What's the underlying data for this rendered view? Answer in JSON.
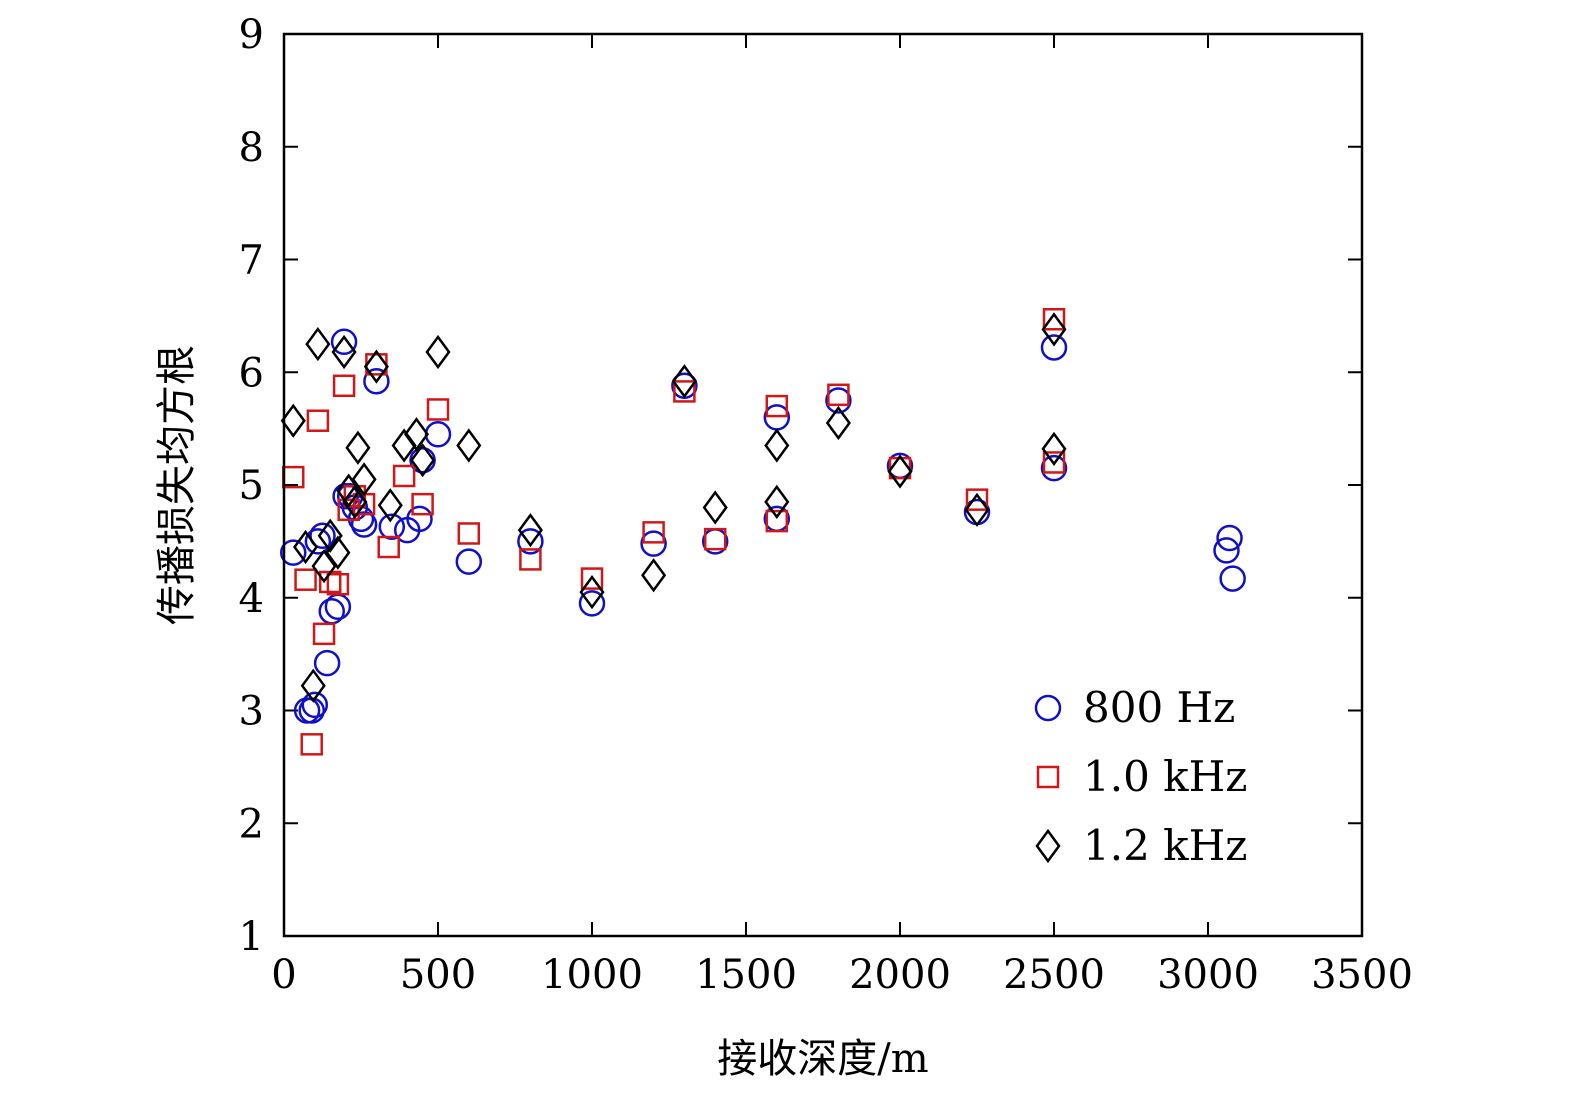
{
  "chart_data": {
    "type": "scatter",
    "title": "",
    "xlabel": "接收深度/m",
    "ylabel": "传播损失均方根",
    "xlim": [
      0,
      3500
    ],
    "ylim": [
      1,
      9
    ],
    "xticks": [
      0,
      500,
      1000,
      1500,
      2000,
      2500,
      3000,
      3500
    ],
    "yticks": [
      1,
      2,
      3,
      4,
      5,
      6,
      7,
      8,
      9
    ],
    "xtick_labels": [
      "0",
      "500",
      "1000",
      "1500",
      "2000",
      "2500",
      "3000",
      "3500"
    ],
    "ytick_labels": [
      "1",
      "2",
      "3",
      "4",
      "5",
      "6",
      "7",
      "8",
      "9"
    ],
    "grid": false,
    "legend_position": "bottom-right",
    "series": [
      {
        "name": "800 Hz",
        "marker": "circle",
        "color": "#1010c8",
        "points": [
          [
            30,
            4.4
          ],
          [
            75,
            3.0
          ],
          [
            90,
            3.0
          ],
          [
            100,
            3.05
          ],
          [
            110,
            4.5
          ],
          [
            125,
            4.55
          ],
          [
            140,
            3.42
          ],
          [
            155,
            3.88
          ],
          [
            175,
            3.92
          ],
          [
            195,
            6.27
          ],
          [
            200,
            4.9
          ],
          [
            215,
            4.9
          ],
          [
            230,
            4.8
          ],
          [
            250,
            4.7
          ],
          [
            260,
            4.65
          ],
          [
            300,
            5.92
          ],
          [
            350,
            4.63
          ],
          [
            400,
            4.6
          ],
          [
            440,
            4.7
          ],
          [
            450,
            5.22
          ],
          [
            500,
            5.45
          ],
          [
            600,
            4.32
          ],
          [
            800,
            4.5
          ],
          [
            1000,
            3.95
          ],
          [
            1200,
            4.48
          ],
          [
            1300,
            5.88
          ],
          [
            1400,
            4.5
          ],
          [
            1600,
            5.6
          ],
          [
            1600,
            4.7
          ],
          [
            1800,
            5.75
          ],
          [
            2000,
            5.17
          ],
          [
            2250,
            4.76
          ],
          [
            2500,
            6.22
          ],
          [
            2500,
            5.15
          ],
          [
            3060,
            4.42
          ],
          [
            3070,
            4.53
          ],
          [
            3080,
            4.17
          ]
        ]
      },
      {
        "name": "1.0 kHz",
        "marker": "square",
        "color": "#d01818",
        "points": [
          [
            30,
            5.07
          ],
          [
            70,
            4.16
          ],
          [
            90,
            2.7
          ],
          [
            110,
            5.57
          ],
          [
            130,
            3.68
          ],
          [
            150,
            4.14
          ],
          [
            175,
            4.12
          ],
          [
            195,
            5.88
          ],
          [
            210,
            4.78
          ],
          [
            230,
            4.9
          ],
          [
            260,
            4.83
          ],
          [
            300,
            6.07
          ],
          [
            340,
            4.45
          ],
          [
            390,
            5.08
          ],
          [
            450,
            4.83
          ],
          [
            500,
            5.67
          ],
          [
            600,
            4.57
          ],
          [
            800,
            4.34
          ],
          [
            1000,
            4.17
          ],
          [
            1200,
            4.58
          ],
          [
            1300,
            5.83
          ],
          [
            1400,
            4.52
          ],
          [
            1600,
            5.7
          ],
          [
            1600,
            4.68
          ],
          [
            1800,
            5.8
          ],
          [
            2000,
            5.15
          ],
          [
            2250,
            4.87
          ],
          [
            2500,
            6.47
          ],
          [
            2500,
            5.2
          ]
        ]
      },
      {
        "name": "1.2 kHz",
        "marker": "diamond",
        "color": "#000000",
        "points": [
          [
            30,
            5.57
          ],
          [
            70,
            4.45
          ],
          [
            95,
            3.22
          ],
          [
            110,
            6.25
          ],
          [
            130,
            4.28
          ],
          [
            150,
            4.55
          ],
          [
            175,
            4.4
          ],
          [
            195,
            6.18
          ],
          [
            210,
            4.95
          ],
          [
            230,
            4.85
          ],
          [
            240,
            5.33
          ],
          [
            260,
            5.05
          ],
          [
            300,
            6.05
          ],
          [
            345,
            4.82
          ],
          [
            390,
            5.35
          ],
          [
            430,
            5.45
          ],
          [
            450,
            5.22
          ],
          [
            500,
            6.18
          ],
          [
            600,
            5.35
          ],
          [
            800,
            4.6
          ],
          [
            1000,
            4.05
          ],
          [
            1200,
            4.2
          ],
          [
            1300,
            5.92
          ],
          [
            1400,
            4.8
          ],
          [
            1600,
            5.35
          ],
          [
            1600,
            4.85
          ],
          [
            1800,
            5.55
          ],
          [
            2000,
            5.12
          ],
          [
            2250,
            4.78
          ],
          [
            2500,
            6.38
          ],
          [
            2500,
            5.32
          ]
        ]
      }
    ]
  }
}
